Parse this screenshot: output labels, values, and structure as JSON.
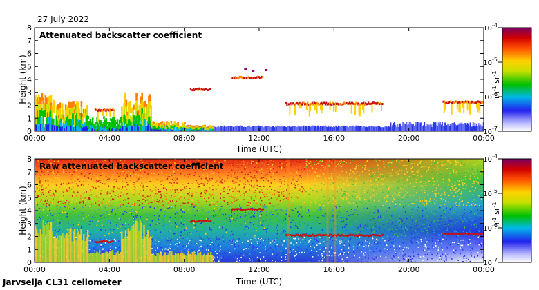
{
  "date": "27 July 2022",
  "site_label": "Jarvselja CL31 ceilometer",
  "chart_data": [
    {
      "type": "heatmap",
      "title": "Attenuated backscatter coefficient",
      "xlabel": "Time (UTC)",
      "ylabel": "Height (km)",
      "xticks": [
        "00:00",
        "04:00",
        "08:00",
        "12:00",
        "16:00",
        "20:00",
        "00:00"
      ],
      "xlim_hours": [
        0,
        24
      ],
      "ylim_km": [
        0,
        8
      ],
      "yticks": [
        0,
        1,
        2,
        3,
        4,
        5,
        6,
        7,
        8
      ],
      "colorbar": {
        "scale": "log",
        "range": [
          1e-07,
          0.0001
        ],
        "ticks": [
          "10",
          "10",
          "10",
          "10"
        ],
        "tick_exponents": [
          "-4",
          "-5",
          "-6",
          "-7"
        ],
        "label": "m sr",
        "label_exponents": [
          "-1",
          "-1"
        ]
      },
      "features": {
        "surface_layer_top_km": 0.3,
        "aerosol_layer_hours": [
          0,
          9.5
        ],
        "cloud_layers": [
          {
            "from_h": 3.2,
            "to_h": 4.2,
            "km": 1.6
          },
          {
            "from_h": 8.3,
            "to_h": 9.4,
            "km": 3.2
          },
          {
            "from_h": 10.5,
            "to_h": 12.2,
            "km": 4.1
          },
          {
            "from_h": 13.4,
            "to_h": 18.6,
            "km": 2.1
          },
          {
            "from_h": 21.8,
            "to_h": 24.0,
            "km": 2.2
          }
        ]
      }
    },
    {
      "type": "heatmap",
      "title": "Raw attenuated backscatter coefficient",
      "xlabel": "Time (UTC)",
      "ylabel": "Height (km)",
      "xticks": [
        "00:00",
        "04:00",
        "08:00",
        "12:00",
        "16:00",
        "20:00",
        "00:00"
      ],
      "xlim_hours": [
        0,
        24
      ],
      "ylim_km": [
        0,
        8
      ],
      "yticks": [
        0,
        1,
        2,
        3,
        4,
        5,
        6,
        7,
        8
      ],
      "colorbar": {
        "scale": "log",
        "range": [
          1e-07,
          0.0001
        ],
        "ticks": [
          "10",
          "10",
          "10",
          "10"
        ],
        "tick_exponents": [
          "-4",
          "-5",
          "-6",
          "-7"
        ],
        "label": "m sr",
        "label_exponents": [
          "-1",
          "-1"
        ]
      }
    }
  ]
}
